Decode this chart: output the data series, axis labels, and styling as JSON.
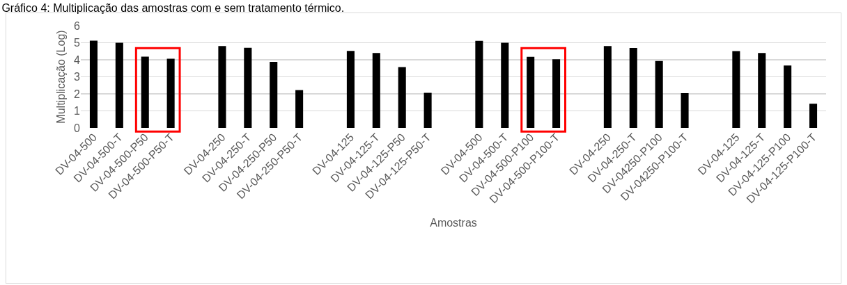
{
  "chart_data": {
    "type": "bar",
    "title": "Gráfico 4: Multiplicação das amostras com e sem tratamento térmico.",
    "xlabel": "Amostras",
    "ylabel": "Multiplicação (Log)",
    "categories": [
      "DV-04-500",
      "DV-04-500-T",
      "DV-04-500-P50",
      "DV-04-500-P50-T",
      null,
      "DV-04-250",
      "DV-04-250-T",
      "DV-04-250-P50",
      "DV-04-250-P50-T",
      null,
      "DV-04-125",
      "DV-04-125-T",
      "DV-04-125-P50",
      "DV-04-125-P50-T",
      null,
      "DV-04-500",
      "DV-04-500-T",
      "DV-04-500-P100",
      "DV-04-500-P100-T",
      null,
      "DV-04-250",
      "DV-04-250-T",
      "DV-04250-P100",
      "DV-04250-P100-T",
      null,
      "DV-04-125",
      "DV-04-125-T",
      "DV-04-125-P100",
      "DV-04-125-P100-T"
    ],
    "values": [
      5.12,
      5.0,
      4.18,
      4.06,
      null,
      4.81,
      4.7,
      3.88,
      2.22,
      null,
      4.52,
      4.4,
      3.57,
      2.06,
      null,
      5.11,
      5.0,
      4.17,
      4.03,
      null,
      4.81,
      4.69,
      3.93,
      2.04,
      null,
      4.51,
      4.4,
      3.66,
      1.42
    ],
    "color": "#000000",
    "ylim": [
      0,
      6
    ],
    "yticks": [
      0,
      1,
      2,
      3,
      4,
      5,
      6
    ],
    "grid": "y"
  }
}
